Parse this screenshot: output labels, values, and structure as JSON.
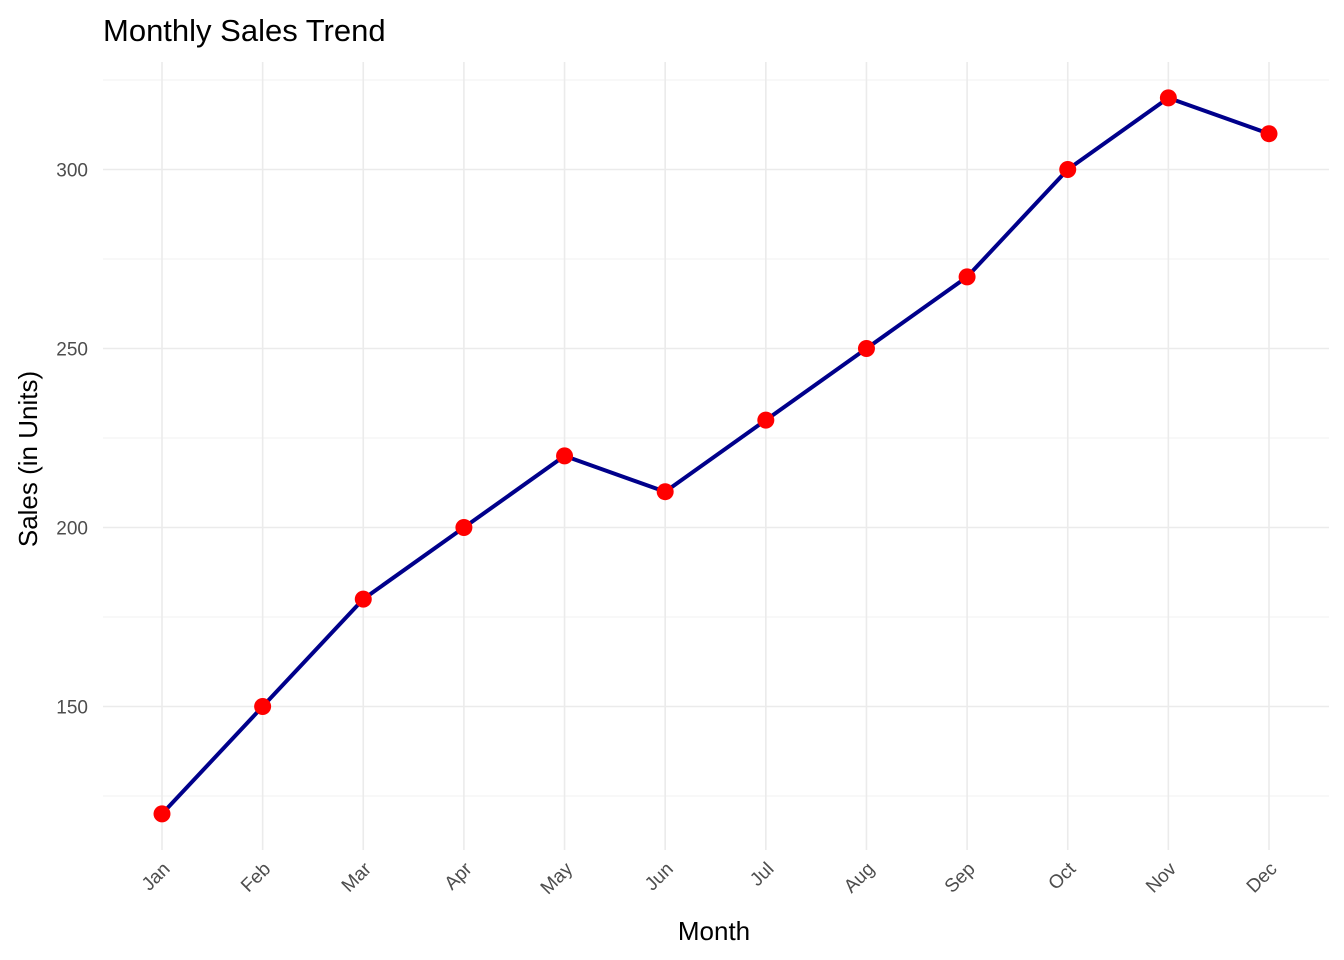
{
  "chart_data": {
    "type": "line",
    "title": "Monthly Sales Trend",
    "xlabel": "Month",
    "ylabel": "Sales (in Units)",
    "categories": [
      "Jan",
      "Feb",
      "Mar",
      "Apr",
      "May",
      "Jun",
      "Jul",
      "Aug",
      "Sep",
      "Oct",
      "Nov",
      "Dec"
    ],
    "values": [
      120,
      150,
      180,
      200,
      220,
      210,
      230,
      250,
      270,
      300,
      320,
      310
    ],
    "ylim": [
      111,
      329
    ],
    "yticks": [
      150,
      200,
      250,
      300
    ],
    "yminor_ticks": [
      125,
      175,
      225,
      275,
      325
    ],
    "grid": true,
    "legend": "none",
    "line_color": "#00008B",
    "point_color": "#FF0000",
    "x_tick_rotation": "45deg"
  }
}
